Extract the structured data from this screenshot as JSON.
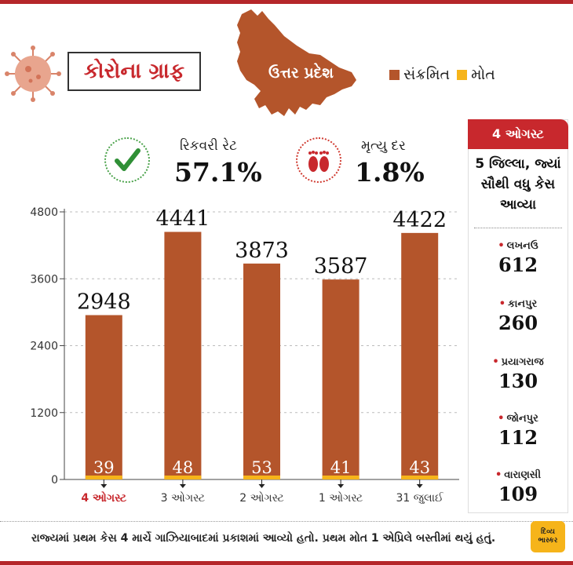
{
  "header": {
    "title": "કોરોના ગ્રાફ",
    "state": "ઉત્તર પ્રદેશ",
    "legend": [
      {
        "label": "સંક્રમિત",
        "color": "#b4552b"
      },
      {
        "label": "મોત",
        "color": "#f6b41a"
      }
    ]
  },
  "stats": {
    "recovery_label": "રિકવરી રેટ",
    "recovery_value": "57.1%",
    "death_label": "મૃત્યુ દર",
    "death_value": "1.8%"
  },
  "chart_data": {
    "type": "bar",
    "stacked": true,
    "categories": [
      "4 ઓગસ્ટ",
      "3 ઓગસ્ટ",
      "2 ઓગસ્ટ",
      "1 ઓગસ્ટ",
      "31 જુલાઈ"
    ],
    "highlight_category_index": 0,
    "series": [
      {
        "name": "સંક્રમિત",
        "values": [
          2948,
          4441,
          3873,
          3587,
          4422
        ],
        "color": "#b4552b"
      },
      {
        "name": "મોત",
        "values": [
          39,
          48,
          53,
          41,
          43
        ],
        "color": "#f6b41a"
      }
    ],
    "yticks": [
      "0",
      "1200",
      "2400",
      "3600",
      "4800"
    ],
    "ylim": [
      0,
      4800
    ]
  },
  "sidebar": {
    "date": "4 ઓગસ્ટ",
    "subtitle": [
      "5 જિલ્લા, જ્યાં",
      "સૌથી વધુ કેસ",
      "આવ્યા"
    ],
    "cities": [
      {
        "name": "લખનઉ",
        "value": "612"
      },
      {
        "name": "કાનપુર",
        "value": "260"
      },
      {
        "name": "પ્રયાગરાજ",
        "value": "130"
      },
      {
        "name": "જોનપુર",
        "value": "112"
      },
      {
        "name": "વારાણસી",
        "value": "109"
      }
    ]
  },
  "footer": {
    "note": "રાજ્યમાં પ્રથમ કેસ 4 માર્ચે ગાઝિયાબાદમાં પ્રકાશમાં આવ્યો હતો. પ્રથમ મોત 1 એપ્રિલે બસ્તીમાં થયું હતું.",
    "logo_line1": "દિવ્ય",
    "logo_line2": "ભાસ્કર"
  }
}
